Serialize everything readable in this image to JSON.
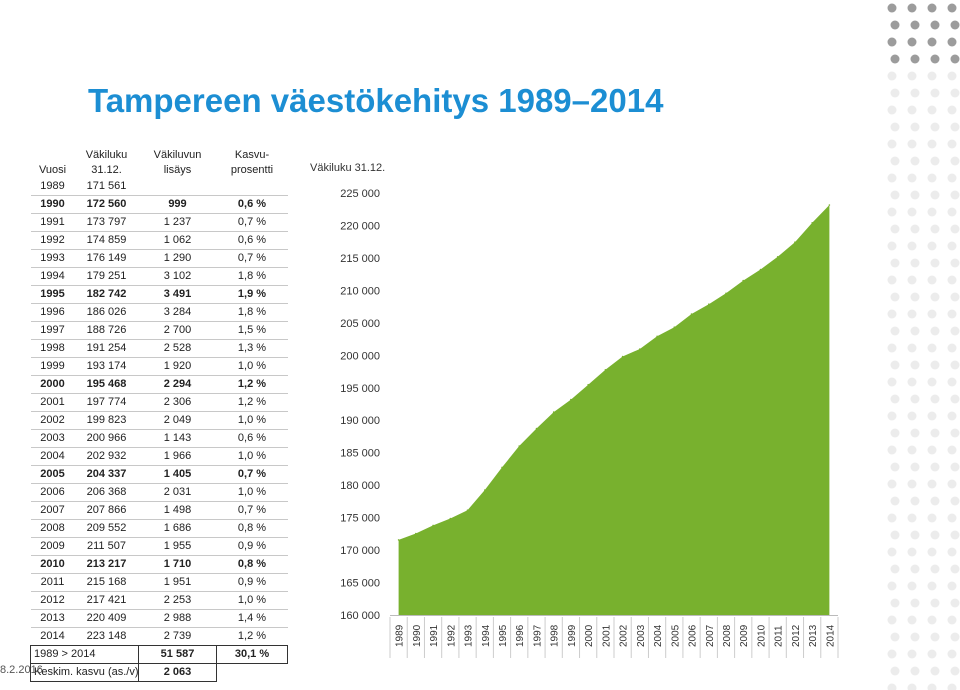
{
  "title": "Tampereen väestökehitys 1989–2014",
  "date": "8.2.2016",
  "table": {
    "headers": {
      "year": "Vuosi",
      "pop_l1": "Väkiluku",
      "pop_l2": "31.12.",
      "inc_l1": "Väkiluvun",
      "inc_l2": "lisäys",
      "growth_l1": "Kasvu-",
      "growth_l2": "prosentti"
    },
    "rows": [
      {
        "year": "1989",
        "pop": "171 561",
        "inc": "",
        "pct": "",
        "bold": false
      },
      {
        "year": "1990",
        "pop": "172 560",
        "inc": "999",
        "pct": "0,6 %",
        "bold": true
      },
      {
        "year": "1991",
        "pop": "173 797",
        "inc": "1 237",
        "pct": "0,7 %",
        "bold": false
      },
      {
        "year": "1992",
        "pop": "174 859",
        "inc": "1 062",
        "pct": "0,6 %",
        "bold": false
      },
      {
        "year": "1993",
        "pop": "176 149",
        "inc": "1 290",
        "pct": "0,7 %",
        "bold": false
      },
      {
        "year": "1994",
        "pop": "179 251",
        "inc": "3 102",
        "pct": "1,8 %",
        "bold": false
      },
      {
        "year": "1995",
        "pop": "182 742",
        "inc": "3 491",
        "pct": "1,9 %",
        "bold": true
      },
      {
        "year": "1996",
        "pop": "186 026",
        "inc": "3 284",
        "pct": "1,8 %",
        "bold": false
      },
      {
        "year": "1997",
        "pop": "188 726",
        "inc": "2 700",
        "pct": "1,5 %",
        "bold": false
      },
      {
        "year": "1998",
        "pop": "191 254",
        "inc": "2 528",
        "pct": "1,3 %",
        "bold": false
      },
      {
        "year": "1999",
        "pop": "193 174",
        "inc": "1 920",
        "pct": "1,0 %",
        "bold": false
      },
      {
        "year": "2000",
        "pop": "195 468",
        "inc": "2 294",
        "pct": "1,2 %",
        "bold": true
      },
      {
        "year": "2001",
        "pop": "197 774",
        "inc": "2 306",
        "pct": "1,2 %",
        "bold": false
      },
      {
        "year": "2002",
        "pop": "199 823",
        "inc": "2 049",
        "pct": "1,0 %",
        "bold": false
      },
      {
        "year": "2003",
        "pop": "200 966",
        "inc": "1 143",
        "pct": "0,6 %",
        "bold": false
      },
      {
        "year": "2004",
        "pop": "202 932",
        "inc": "1 966",
        "pct": "1,0 %",
        "bold": false
      },
      {
        "year": "2005",
        "pop": "204 337",
        "inc": "1 405",
        "pct": "0,7 %",
        "bold": true
      },
      {
        "year": "2006",
        "pop": "206 368",
        "inc": "2 031",
        "pct": "1,0 %",
        "bold": false
      },
      {
        "year": "2007",
        "pop": "207 866",
        "inc": "1 498",
        "pct": "0,7 %",
        "bold": false
      },
      {
        "year": "2008",
        "pop": "209 552",
        "inc": "1 686",
        "pct": "0,8 %",
        "bold": false
      },
      {
        "year": "2009",
        "pop": "211 507",
        "inc": "1 955",
        "pct": "0,9 %",
        "bold": false
      },
      {
        "year": "2010",
        "pop": "213 217",
        "inc": "1 710",
        "pct": "0,8 %",
        "bold": true
      },
      {
        "year": "2011",
        "pop": "215 168",
        "inc": "1 951",
        "pct": "0,9 %",
        "bold": false
      },
      {
        "year": "2012",
        "pop": "217 421",
        "inc": "2 253",
        "pct": "1,0 %",
        "bold": false
      },
      {
        "year": "2013",
        "pop": "220 409",
        "inc": "2 988",
        "pct": "1,4 %",
        "bold": false
      },
      {
        "year": "2014",
        "pop": "223 148",
        "inc": "2 739",
        "pct": "1,2 %",
        "bold": false
      }
    ],
    "summary": {
      "label": "1989 > 2014",
      "inc": "51 587",
      "pct": "30,1 %"
    },
    "average": {
      "label": "Keskim. kasvu (as./v)",
      "inc": "2 063"
    }
  },
  "chart_data": {
    "type": "area",
    "title": "Väkiluku 31.12.",
    "color": "#78b12e",
    "x": [
      "1989",
      "1990",
      "1991",
      "1992",
      "1993",
      "1994",
      "1995",
      "1996",
      "1997",
      "1998",
      "1999",
      "2000",
      "2001",
      "2002",
      "2003",
      "2004",
      "2005",
      "2006",
      "2007",
      "2008",
      "2009",
      "2010",
      "2011",
      "2012",
      "2013",
      "2014"
    ],
    "values": [
      171561,
      172560,
      173797,
      174859,
      176149,
      179251,
      182742,
      186026,
      188726,
      191254,
      193174,
      195468,
      197774,
      199823,
      200966,
      202932,
      204337,
      206368,
      207866,
      209552,
      211507,
      213217,
      215168,
      217421,
      220409,
      223148
    ],
    "ylim": [
      160000,
      225000
    ],
    "yticks": [
      160000,
      165000,
      170000,
      175000,
      180000,
      185000,
      190000,
      195000,
      200000,
      205000,
      210000,
      215000,
      220000,
      225000
    ],
    "ytick_labels": [
      "160 000",
      "165 000",
      "170 000",
      "175 000",
      "180 000",
      "185 000",
      "190 000",
      "195 000",
      "200 000",
      "205 000",
      "210 000",
      "215 000",
      "220 000",
      "225 000"
    ],
    "grid": false
  }
}
